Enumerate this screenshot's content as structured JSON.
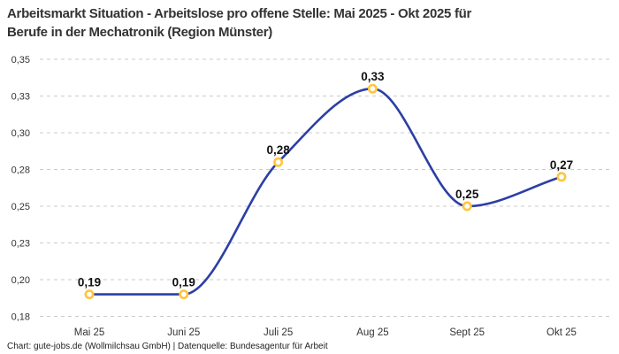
{
  "header": {
    "title_full": "Arbeitsmarkt Situation - Arbeitslose pro offene Stelle: Mai 2025 - Okt 2025 für Berufe in der Mechatronik (Region Münster)",
    "title_line1": "Arbeitsmarkt Situation - Arbeitslose pro offene Stelle: Mai 2025 - Okt 2025 für",
    "title_line2": "Berufe in der Mechatronik (Region Münster)"
  },
  "footer": {
    "credit": "Chart: gute-jobs.de (Wollmilchsau GmbH) | Datenquelle: Bundesagentur für Arbeit"
  },
  "chart_data": {
    "type": "line",
    "title": "Arbeitsmarkt Situation - Arbeitslose pro offene Stelle: Mai 2025 - Okt 2025 für Berufe in der Mechatronik (Region Münster)",
    "categories": [
      "Mai 25",
      "Juni 25",
      "Juli 25",
      "Aug 25",
      "Sept 25",
      "Okt 25"
    ],
    "values": [
      0.19,
      0.19,
      0.28,
      0.33,
      0.25,
      0.27
    ],
    "point_labels": [
      "0,19",
      "0,19",
      "0,28",
      "0,33",
      "0,25",
      "0,27"
    ],
    "xlabel": "",
    "ylabel": "",
    "ylim": [
      0.175,
      0.35
    ],
    "yticks": [
      {
        "value": 0.35,
        "label": "0,35"
      },
      {
        "value": 0.325,
        "label": "0,33"
      },
      {
        "value": 0.3,
        "label": "0,30"
      },
      {
        "value": 0.275,
        "label": "0,28"
      },
      {
        "value": 0.25,
        "label": "0,25"
      },
      {
        "value": 0.225,
        "label": "0,23"
      },
      {
        "value": 0.2,
        "label": "0,20"
      },
      {
        "value": 0.175,
        "label": "0,18"
      }
    ],
    "grid": "horizontal-dashed",
    "legend": "none",
    "curve": "smooth-monotone",
    "colors": {
      "line": "#2B3FA5",
      "marker_stroke": "#FFC53D",
      "marker_fill": "#FFFFFF",
      "grid": "#CBCBCB",
      "axis_text": "#333333",
      "point_label_text": "#111111"
    }
  }
}
